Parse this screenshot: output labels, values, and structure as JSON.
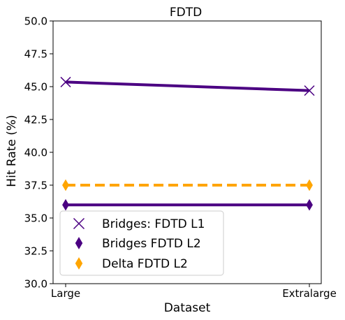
{
  "chart_data": {
    "type": "line",
    "title": "FDTD",
    "xlabel": "Dataset",
    "ylabel": "Hit Rate (%)",
    "categories": [
      "Large",
      "Extralarge"
    ],
    "ylim": [
      30.0,
      50.0
    ],
    "yticks": [
      "30.0",
      "32.5",
      "35.0",
      "37.5",
      "40.0",
      "42.5",
      "45.0",
      "47.5",
      "50.0"
    ],
    "grid": false,
    "legend_position": "lower-left",
    "series": [
      {
        "name": "Bridges: FDTD L1",
        "values": [
          45.35,
          44.7
        ],
        "color": "#4b0082",
        "marker": "x",
        "linestyle": "solid"
      },
      {
        "name": "Bridges FDTD L2",
        "values": [
          36.0,
          36.0
        ],
        "color": "#4b0082",
        "marker": "thin-diamond",
        "linestyle": "solid"
      },
      {
        "name": "Delta FDTD L2",
        "values": [
          37.5,
          37.5
        ],
        "color": "#ffa500",
        "marker": "thin-diamond",
        "linestyle": "dashed"
      }
    ]
  }
}
